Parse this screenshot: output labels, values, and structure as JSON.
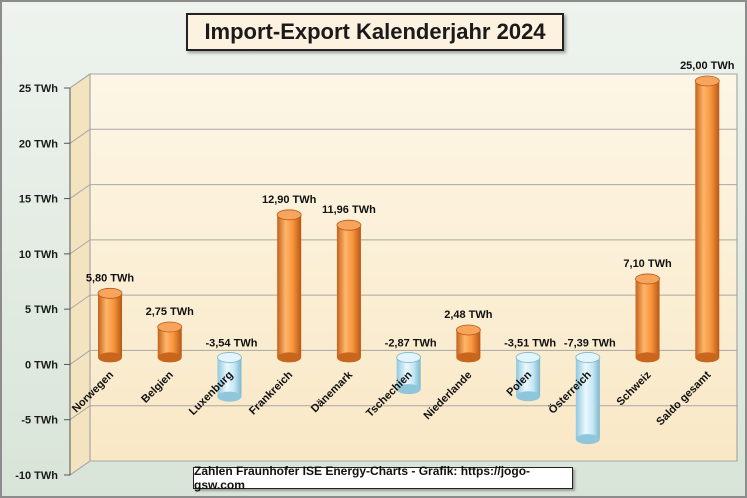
{
  "title": "Import-Export Kalenderjahr 2024",
  "source": "Zahlen Fraunhofer ISE  Energy-Charts - Grafik: https://jogo-gsw.com",
  "chart_data": {
    "type": "bar",
    "title": "Import-Export Kalenderjahr 2024",
    "unit": "TWh",
    "categories": [
      "Norwegen",
      "Belgien",
      "Luxenburg",
      "Frankreich",
      "Dänemark",
      "Tschechien",
      "Niederlande",
      "Polen",
      "Österreich",
      "Schweiz",
      "Saldo gesamt"
    ],
    "values": [
      5.8,
      2.75,
      -3.54,
      12.9,
      11.96,
      -2.87,
      2.48,
      -3.51,
      -7.39,
      7.1,
      25.0
    ],
    "value_labels": [
      "5,80 TWh",
      "2,75 TWh",
      "-3,54 TWh",
      "12,90 TWh",
      "11,96 TWh",
      "-2,87 TWh",
      "2,48 TWh",
      "-3,51 TWh",
      "-7,39 TWh",
      "7,10 TWh",
      "25,00 TWh"
    ],
    "ylim": [
      -10,
      25
    ],
    "yticks": [
      25,
      20,
      15,
      10,
      5,
      0,
      -5,
      -10
    ],
    "ytick_labels": [
      "25 TWh",
      "20 TWh",
      "15 TWh",
      "10 TWh",
      "5 TWh",
      "0 TWh",
      "-5 TWh",
      "-10 TWh"
    ],
    "grid": true,
    "colors": {
      "positive": "#f0923a",
      "negative": "#bfe6f5",
      "plot_bg": "#fdf3dc",
      "frame_bg": "#dfe8df"
    }
  }
}
